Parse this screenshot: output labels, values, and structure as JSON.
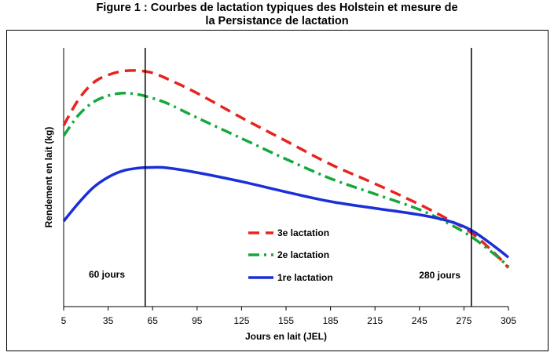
{
  "title_line1": "Figure 1 : Courbes de lactation typiques des Holstein et mesure de",
  "title_line2": "la Persistance de lactation",
  "chart_data": {
    "type": "line",
    "title": "Figure 1 : Courbes de lactation typiques des Holstein et mesure de la Persistance de lactation",
    "xlabel": "Jours en lait (JEL)",
    "ylabel": "Rendement en lait (kg)",
    "xlim": [
      5,
      305
    ],
    "ylim": [
      0,
      100
    ],
    "xticks": [
      5,
      35,
      65,
      95,
      125,
      155,
      185,
      215,
      245,
      275,
      305
    ],
    "yticks_shown": false,
    "grid": false,
    "legend_position": "center-right",
    "vlines": [
      {
        "x": 60,
        "label": "60 jours"
      },
      {
        "x": 280,
        "label": "280 jours"
      }
    ],
    "series": [
      {
        "name": "3e lactation",
        "color": "#e8231f",
        "style": "dashed",
        "x": [
          5,
          15,
          25,
          35,
          45,
          55,
          65,
          75,
          95,
          125,
          155,
          185,
          215,
          245,
          265,
          280,
          295,
          305
        ],
        "y": [
          70,
          80,
          86.5,
          89.5,
          91,
          91.2,
          90.3,
          88,
          82.5,
          73,
          64,
          55,
          47.5,
          39.5,
          33.5,
          28.5,
          21,
          15
        ]
      },
      {
        "name": "2e lactation",
        "color": "#14a83b",
        "style": "dashdot",
        "x": [
          5,
          15,
          25,
          35,
          45,
          55,
          65,
          75,
          95,
          125,
          155,
          185,
          215,
          245,
          265,
          280,
          295,
          305
        ],
        "y": [
          66,
          74,
          79,
          81.5,
          82.5,
          82,
          80.5,
          78.5,
          73,
          65,
          57,
          49.5,
          43.5,
          37.5,
          32,
          27,
          20.5,
          15.5
        ]
      },
      {
        "name": "1re lactation",
        "color": "#1a2fd8",
        "style": "solid",
        "x": [
          5,
          15,
          25,
          35,
          45,
          55,
          65,
          75,
          95,
          125,
          155,
          185,
          215,
          245,
          265,
          280,
          295,
          305
        ],
        "y": [
          33,
          40,
          46,
          50,
          52.5,
          53.5,
          53.8,
          53.6,
          51.8,
          48.3,
          44.3,
          40.6,
          38,
          35.5,
          33,
          29.5,
          23.5,
          19
        ]
      }
    ]
  }
}
